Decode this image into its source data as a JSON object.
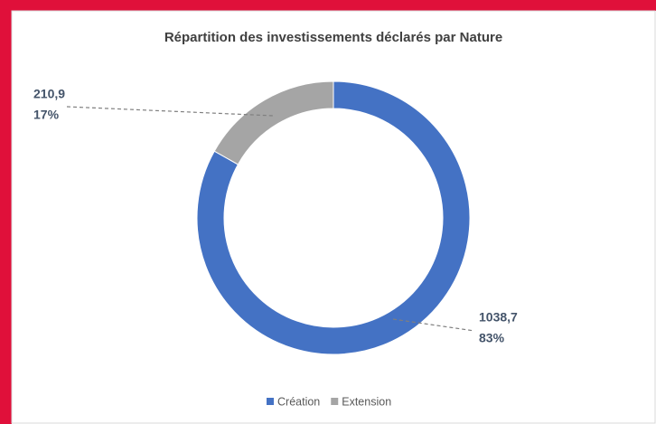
{
  "chart_data": {
    "type": "donut",
    "title": "Répartition des investissements  déclarés par Nature",
    "categories": [
      "Création",
      "Extension"
    ],
    "values": [
      1038.7,
      210.9
    ],
    "value_labels": [
      "1038,7",
      "210,9"
    ],
    "percentages": [
      83,
      17
    ],
    "percentage_labels": [
      "83%",
      "17%"
    ],
    "colors": [
      "#4472c4",
      "#a5a5a5"
    ],
    "legend": "bottom"
  }
}
